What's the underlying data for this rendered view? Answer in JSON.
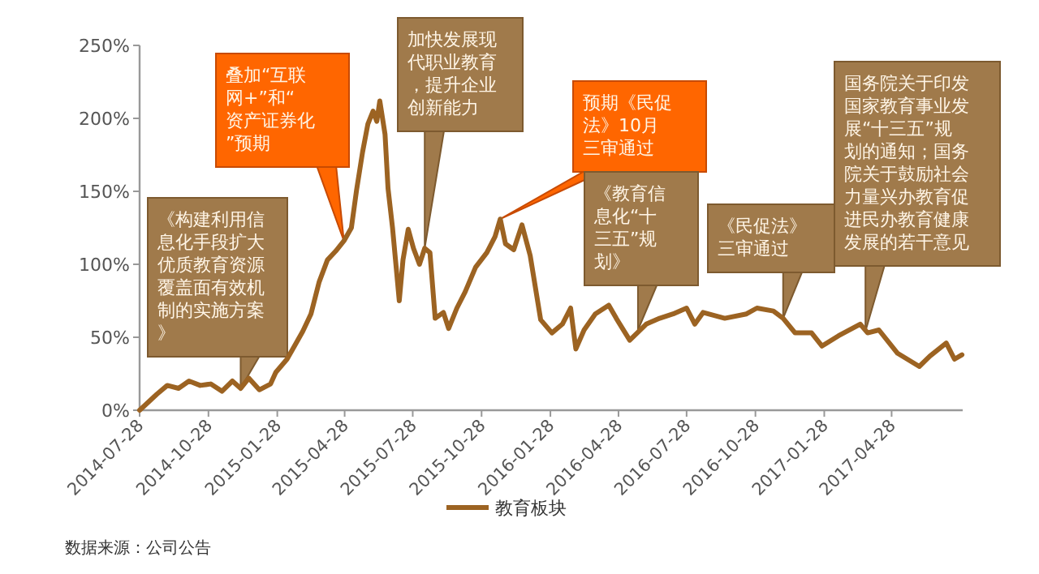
{
  "chart_data": {
    "type": "line",
    "x": [
      "2014-07-28",
      "2014-08-20",
      "2014-09-03",
      "2014-09-18",
      "2014-10-02",
      "2014-10-17",
      "2014-10-31",
      "2014-11-15",
      "2014-11-29",
      "2014-12-10",
      "2014-12-21",
      "2015-01-04",
      "2015-01-19",
      "2015-01-26",
      "2015-02-10",
      "2015-02-20",
      "2015-03-03",
      "2015-03-14",
      "2015-03-25",
      "2015-04-05",
      "2015-04-16",
      "2015-04-27",
      "2015-05-07",
      "2015-05-14",
      "2015-05-22",
      "2015-05-29",
      "2015-06-05",
      "2015-06-10",
      "2015-06-14",
      "2015-06-21",
      "2015-06-25",
      "2015-07-01",
      "2015-07-10",
      "2015-07-15",
      "2015-07-22",
      "2015-07-29",
      "2015-08-06",
      "2015-08-13",
      "2015-08-20",
      "2015-08-27",
      "2015-09-07",
      "2015-09-14",
      "2015-09-25",
      "2015-10-06",
      "2015-10-20",
      "2015-11-04",
      "2015-11-15",
      "2015-11-22",
      "2015-11-29",
      "2015-12-10",
      "2015-12-21",
      "2016-01-01",
      "2016-01-15",
      "2016-01-30",
      "2016-02-13",
      "2016-02-24",
      "2016-03-02",
      "2016-03-13",
      "2016-03-28",
      "2016-04-15",
      "2016-04-25",
      "2016-05-13",
      "2016-06-04",
      "2016-06-22",
      "2016-07-10",
      "2016-07-28",
      "2016-08-08",
      "2016-08-19",
      "2016-09-17",
      "2016-10-16",
      "2016-10-30",
      "2016-11-21",
      "2016-12-04",
      "2016-12-20",
      "2017-01-11",
      "2017-01-25",
      "2017-02-16",
      "2017-03-17",
      "2017-03-27",
      "2017-04-11",
      "2017-05-06",
      "2017-06-04",
      "2017-06-18",
      "2017-07-10",
      "2017-07-21",
      "2017-07-31"
    ],
    "series": [
      {
        "name": "教育板块",
        "color": "#9c6322",
        "values": [
          0,
          11,
          17,
          15,
          20,
          17,
          18,
          13,
          20,
          15,
          22,
          14,
          18,
          26,
          35,
          44,
          54,
          66,
          88,
          103,
          109,
          116,
          125,
          151,
          177,
          196,
          205,
          198,
          212,
          189,
          152,
          125,
          75,
          103,
          124,
          111,
          100,
          111,
          108,
          63,
          67,
          56,
          70,
          81,
          98,
          108,
          119,
          131,
          114,
          110,
          127,
          106,
          62,
          53,
          59,
          70,
          42,
          55,
          66,
          72,
          63,
          48,
          59,
          63,
          66,
          70,
          59,
          67,
          63,
          66,
          70,
          68,
          63,
          53,
          53,
          44,
          51,
          59,
          53,
          55,
          39,
          30,
          37,
          46,
          35,
          38
        ]
      }
    ],
    "xlim": [
      "2014-07-28",
      "2017-08-01"
    ],
    "xticks": [
      "2014-07-28",
      "2014-10-28",
      "2015-01-28",
      "2015-04-28",
      "2015-07-28",
      "2015-10-28",
      "2016-01-28",
      "2016-04-28",
      "2016-07-28",
      "2016-10-28",
      "2017-01-28",
      "2017-04-28"
    ],
    "ylim": [
      0,
      250
    ],
    "yticks": [
      {
        "value": 0,
        "label": "0%"
      },
      {
        "value": 50,
        "label": "50%"
      },
      {
        "value": 100,
        "label": "100%"
      },
      {
        "value": 150,
        "label": "150%"
      },
      {
        "value": 200,
        "label": "200%"
      },
      {
        "value": 250,
        "label": "250%"
      }
    ],
    "grid": false,
    "legend": "bottom",
    "marker": "none",
    "line_style": "solid",
    "annotations": [
      {
        "text": "《构建利用信息化手段扩大优质教育资源覆盖面有效机制的实施方案》",
        "x": "2014-12-10",
        "y": 15
      },
      {
        "text": "叠加“互联网+”和“资产证券化”预期",
        "x": "2015-04-27",
        "y": 116
      },
      {
        "text": "加快发展现代职业教育，提升企业创新能力",
        "x": "2015-08-13",
        "y": 111
      },
      {
        "text": "预期《民促法》10月三审通过",
        "x": "2015-11-22",
        "y": 131
      },
      {
        "text": "《教育信息化“十三五”规划》",
        "x": "2016-05-24",
        "y": 55
      },
      {
        "text": "《民促法》三审通过",
        "x": "2016-12-04",
        "y": 63
      },
      {
        "text": "国务院关于印发国家教育事业发展“十三五”规划的通知；国务院关于鼓励社会力量兴办教育促进民办教育健康发展的若干意见",
        "x": "2017-03-24",
        "y": 54
      },
      "数据来源：公司公告"
    ]
  }
}
